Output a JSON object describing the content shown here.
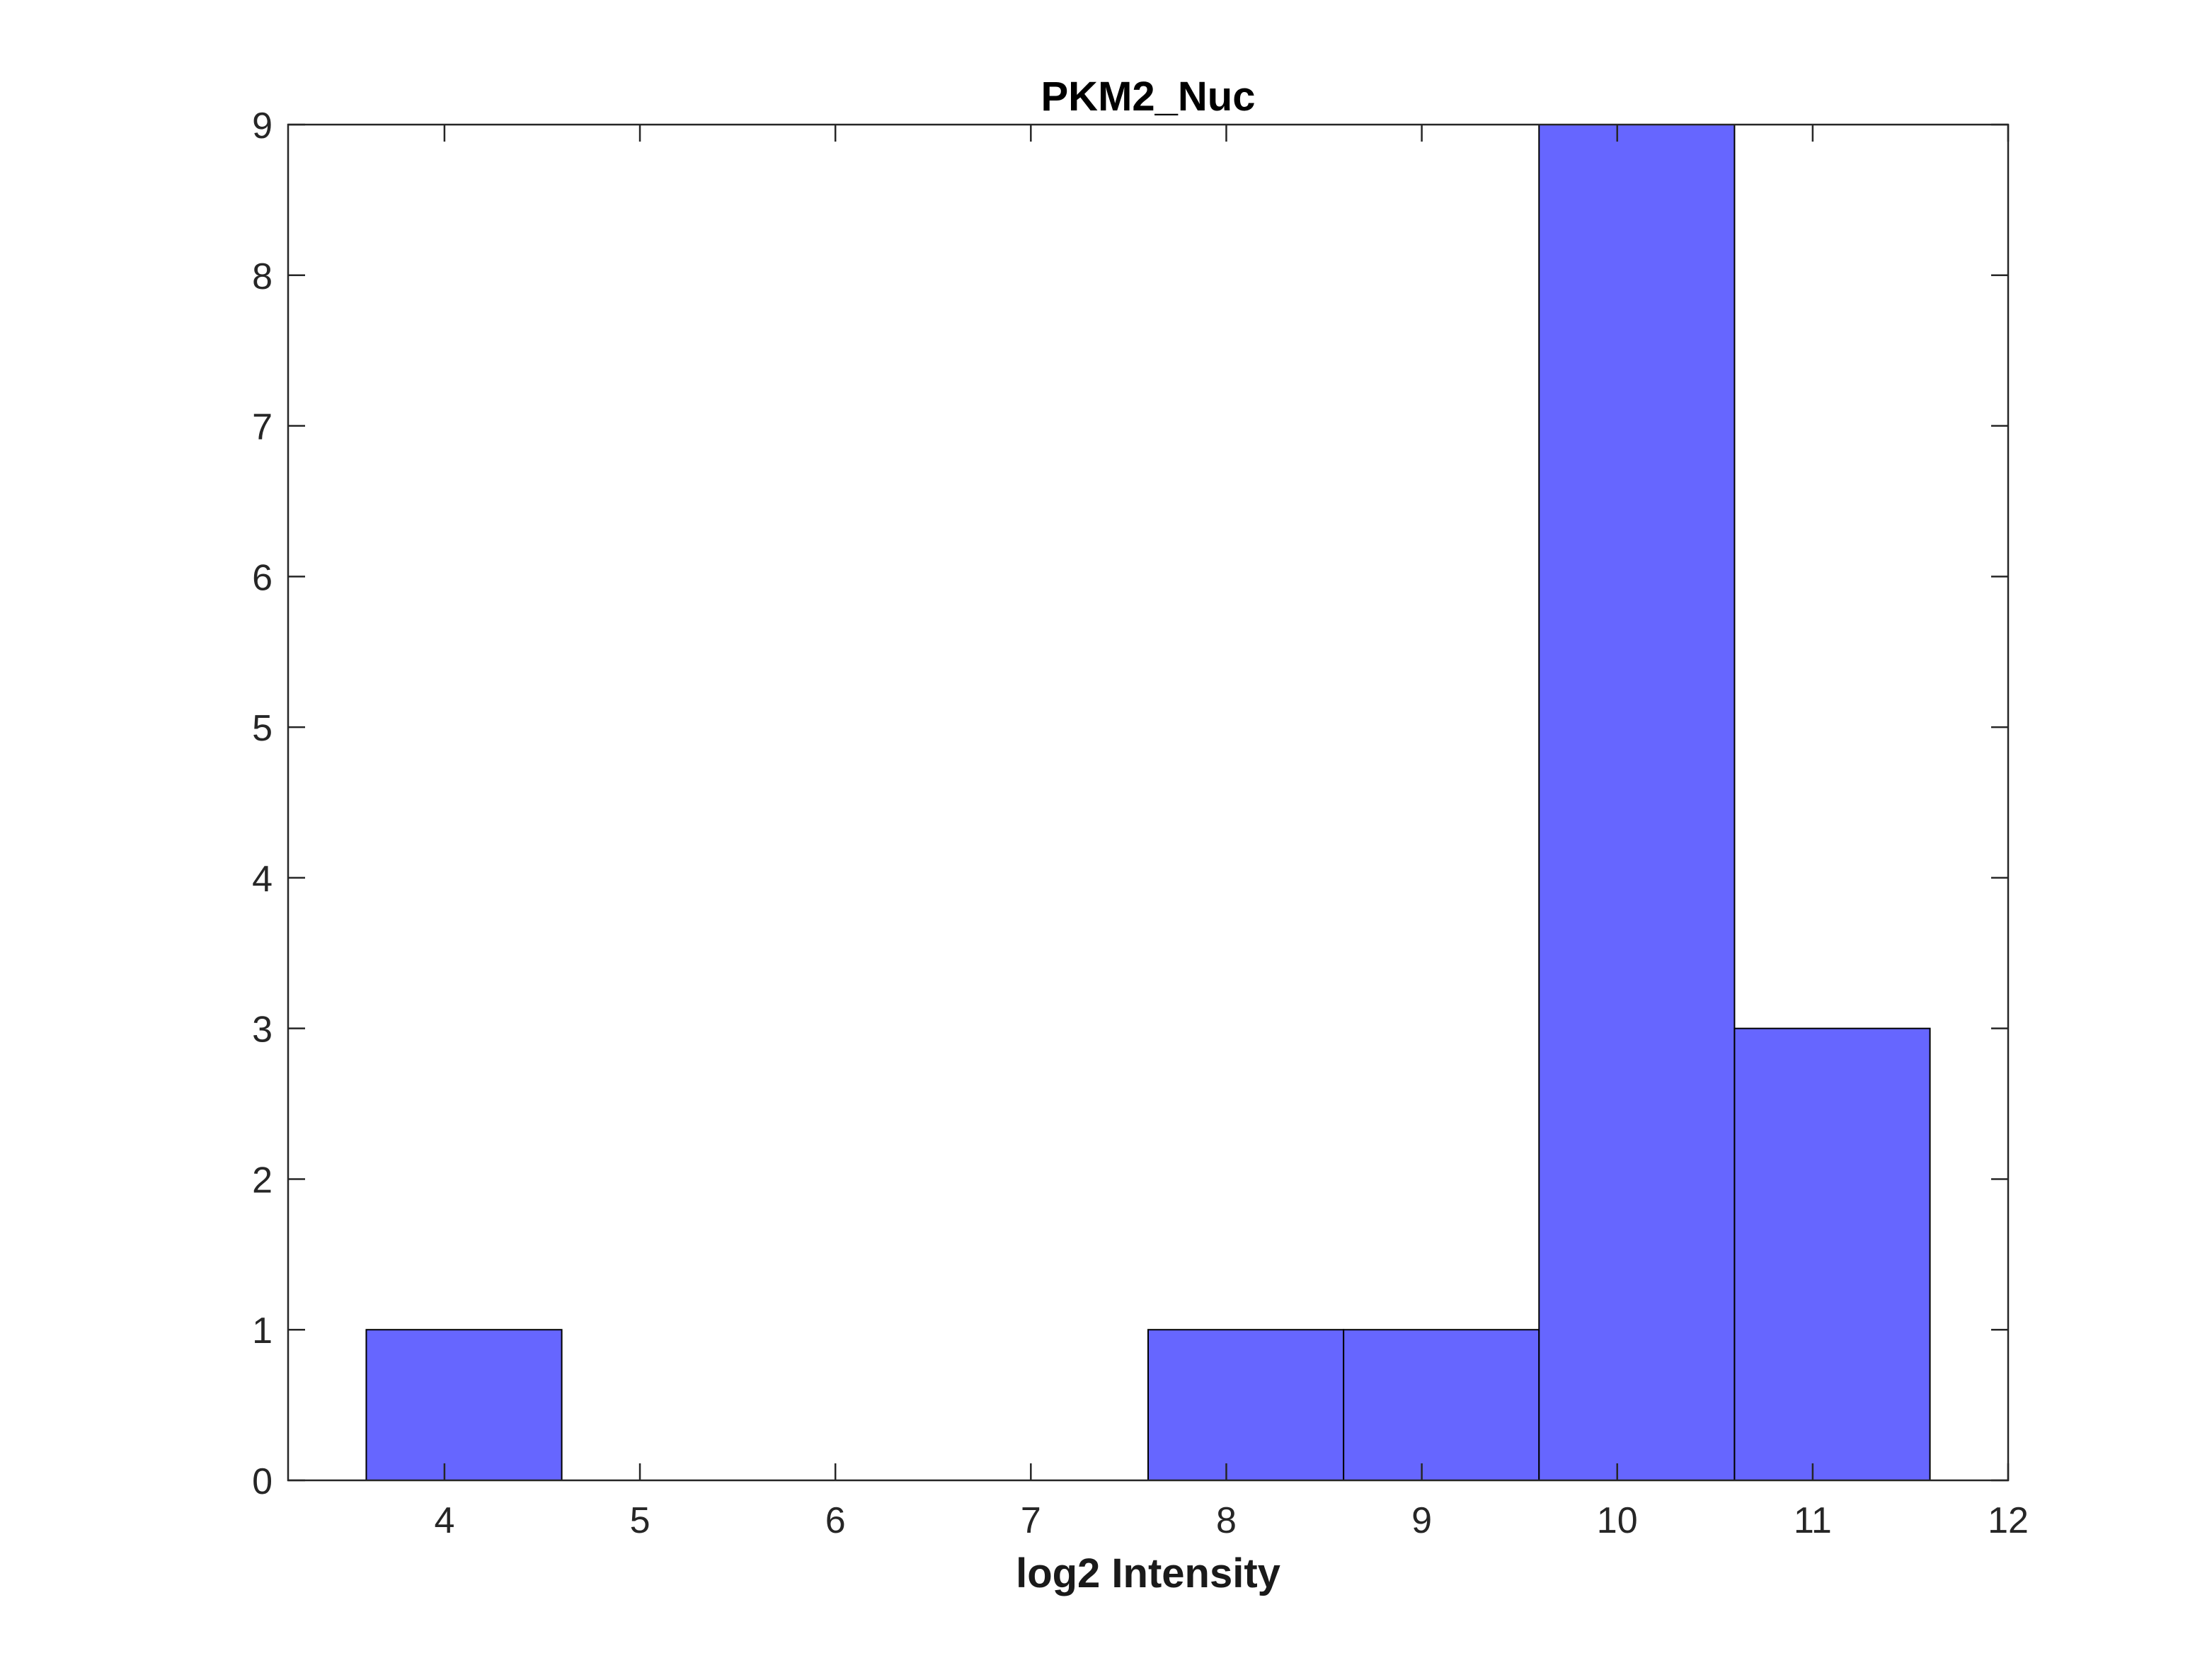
{
  "chart_data": {
    "type": "bar",
    "title": "PKM2_Nuc",
    "xlabel": "log2 Intensity",
    "ylabel": "",
    "xlim": [
      3.2,
      12
    ],
    "ylim": [
      0,
      9
    ],
    "xticks": [
      4,
      5,
      6,
      7,
      8,
      9,
      10,
      11,
      12
    ],
    "yticks": [
      0,
      1,
      2,
      3,
      4,
      5,
      6,
      7,
      8,
      9
    ],
    "bin_width": 1,
    "bins": [
      {
        "center": 4.1,
        "count": 1
      },
      {
        "center": 8.1,
        "count": 1
      },
      {
        "center": 9.1,
        "count": 1
      },
      {
        "center": 10.1,
        "count": 9
      },
      {
        "center": 11.1,
        "count": 3
      }
    ],
    "grid": false,
    "legend": "none",
    "bar_color": "#6666ff",
    "edge_color": "#000000"
  }
}
